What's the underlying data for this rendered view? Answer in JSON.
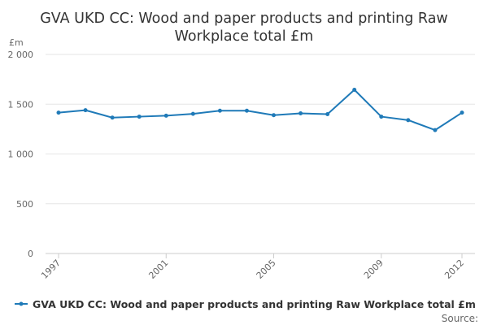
{
  "chart_data": {
    "type": "line",
    "title_lines": [
      "GVA UKD CC: Wood and paper products and printing Raw",
      "Workplace total £m"
    ],
    "y_unit": "£m",
    "x": [
      1997,
      1998,
      1999,
      2000,
      2001,
      2002,
      2003,
      2004,
      2005,
      2006,
      2007,
      2008,
      2009,
      2010,
      2011,
      2012
    ],
    "x_tick_labels": [
      "1997",
      "2001",
      "2005",
      "2009",
      "2012"
    ],
    "x_tick_values": [
      1997,
      2001,
      2005,
      2009,
      2012
    ],
    "ylim": [
      0,
      2000
    ],
    "y_ticks": [
      0,
      500,
      1000,
      1500,
      2000
    ],
    "y_tick_labels": [
      "0",
      "500",
      "1 000",
      "1 500",
      "2 000"
    ],
    "grid": "horizontal",
    "series": [
      {
        "name": "GVA UKD CC: Wood and paper products and printing Raw Workplace total £m",
        "color": "#1f7ab8",
        "values": [
          1415,
          1440,
          1365,
          1375,
          1385,
          1403,
          1435,
          1435,
          1390,
          1408,
          1400,
          1645,
          1375,
          1340,
          1240,
          1415
        ]
      }
    ],
    "legend_position": "bottom",
    "source_label": "Source:"
  }
}
